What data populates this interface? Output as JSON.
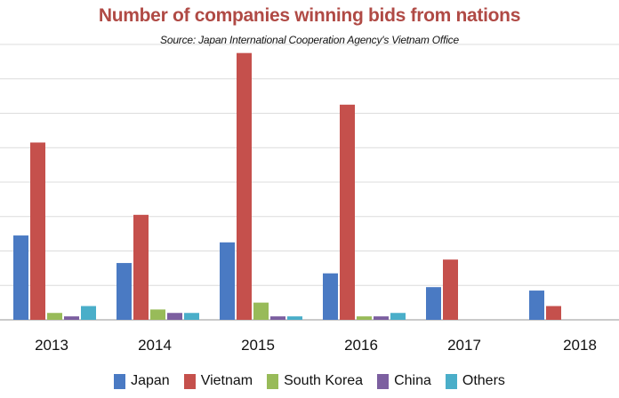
{
  "chart_data": {
    "type": "bar",
    "title": "Number of companies winning bids from nations",
    "subtitle": "Source: Japan International Cooperation Agency's Vietnam Office",
    "xlabel": "",
    "ylabel": "",
    "ylim": [
      0,
      16
    ],
    "grid": true,
    "legend_position": "bottom",
    "categories": [
      "2013",
      "2014",
      "2015",
      "2016",
      "2017",
      "2018"
    ],
    "series": [
      {
        "name": "Japan",
        "color": "#4a7ac3",
        "values": [
          4.9,
          3.3,
          4.5,
          2.7,
          1.9,
          1.7
        ]
      },
      {
        "name": "Vietnam",
        "color": "#c5504c",
        "values": [
          10.3,
          6.1,
          15.5,
          12.5,
          3.5,
          0.8
        ]
      },
      {
        "name": "South Korea",
        "color": "#98bb59",
        "values": [
          0.4,
          0.6,
          1.0,
          0.2,
          0,
          0
        ]
      },
      {
        "name": "China",
        "color": "#7c5fa0",
        "values": [
          0.2,
          0.4,
          0.2,
          0.2,
          0,
          0
        ]
      },
      {
        "name": "Others",
        "color": "#4aaec9",
        "values": [
          0.8,
          0.4,
          0.2,
          0.4,
          0,
          0
        ]
      }
    ]
  }
}
